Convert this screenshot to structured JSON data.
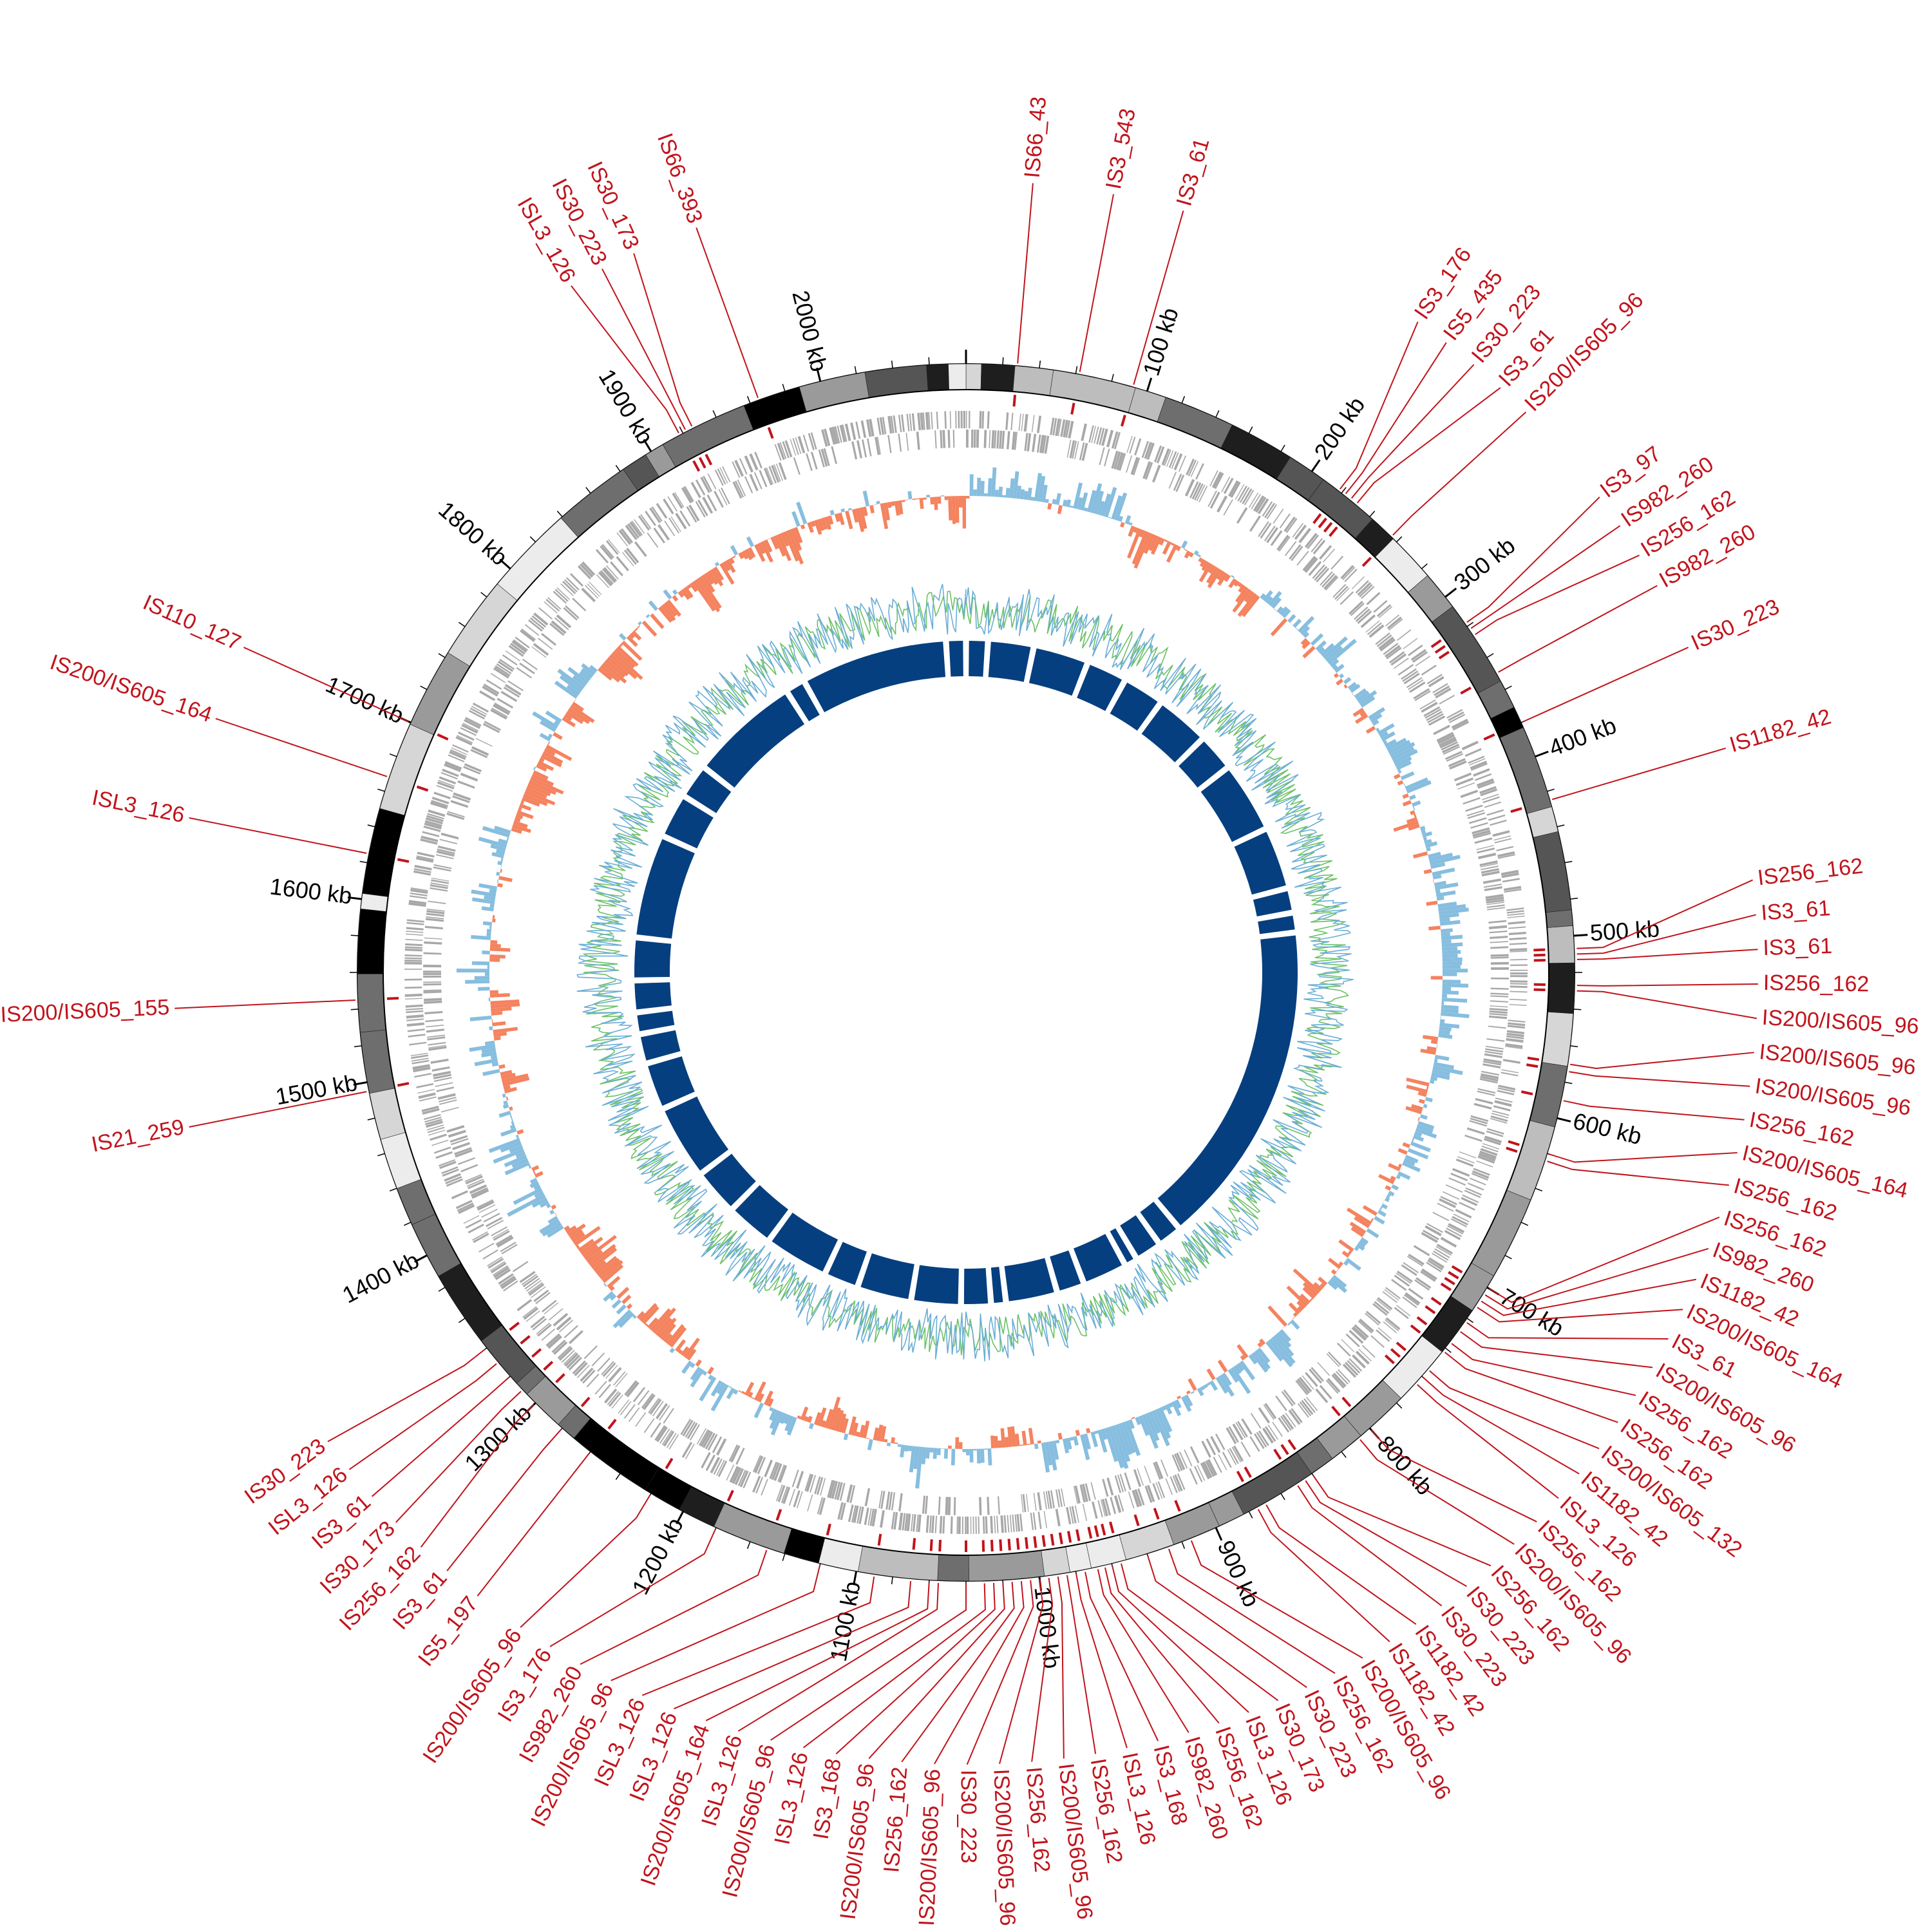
{
  "diagram": {
    "genome_length_kb": 2080,
    "colors": {
      "is_element": "#c0141c",
      "gc_skew_positive": "#87bedf",
      "gc_skew_negative": "#f4835f",
      "gc_content_a": "#6aaed6",
      "gc_content_b": "#6cc167",
      "homology_blocks": "#063f7f",
      "cds": "#a8a8a8",
      "text": "#000000"
    },
    "position_labels": [
      {
        "kb": 100,
        "text": "100 kb"
      },
      {
        "kb": 200,
        "text": "200 kb"
      },
      {
        "kb": 300,
        "text": "300 kb"
      },
      {
        "kb": 400,
        "text": "400 kb"
      },
      {
        "kb": 500,
        "text": "500 kb"
      },
      {
        "kb": 600,
        "text": "600 kb"
      },
      {
        "kb": 700,
        "text": "700 kb"
      },
      {
        "kb": 800,
        "text": "800 kb"
      },
      {
        "kb": 900,
        "text": "900 kb"
      },
      {
        "kb": 1000,
        "text": "1000 kb"
      },
      {
        "kb": 1100,
        "text": "1100 kb"
      },
      {
        "kb": 1200,
        "text": "1200 kb"
      },
      {
        "kb": 1300,
        "text": "1300 kb"
      },
      {
        "kb": 1400,
        "text": "1400 kb"
      },
      {
        "kb": 1500,
        "text": "1500 kb"
      },
      {
        "kb": 1600,
        "text": "1600 kb"
      },
      {
        "kb": 1700,
        "text": "1700 kb"
      },
      {
        "kb": 1800,
        "text": "1800 kb"
      },
      {
        "kb": 1900,
        "text": "1900 kb"
      },
      {
        "kb": 2000,
        "text": "2000 kb"
      }
    ],
    "is_elements": [
      {
        "kb": 28,
        "label": "IS66_43"
      },
      {
        "kb": 62,
        "label": "IS3_543"
      },
      {
        "kb": 92,
        "label": "IS3_61"
      },
      {
        "kb": 218,
        "label": "IS3_176"
      },
      {
        "kb": 222,
        "label": "IS5_435"
      },
      {
        "kb": 226,
        "label": "IS30_223"
      },
      {
        "kb": 230,
        "label": "IS3_61"
      },
      {
        "kb": 256,
        "label": "IS200/IS605_96"
      },
      {
        "kb": 318,
        "label": "IS3_97"
      },
      {
        "kb": 322,
        "label": "IS982_260"
      },
      {
        "kb": 326,
        "label": "IS256_162"
      },
      {
        "kb": 350,
        "label": "IS982_260"
      },
      {
        "kb": 380,
        "label": "IS30_223"
      },
      {
        "kb": 425,
        "label": "IS1182_42"
      },
      {
        "kb": 507,
        "label": "IS256_162"
      },
      {
        "kb": 510,
        "label": "IS3_61"
      },
      {
        "kb": 513,
        "label": "IS3_61"
      },
      {
        "kb": 527,
        "label": "IS256_162"
      },
      {
        "kb": 530,
        "label": "IS200/IS605_96"
      },
      {
        "kb": 570,
        "label": "IS200/IS605_96"
      },
      {
        "kb": 574,
        "label": "IS200/IS605_96"
      },
      {
        "kb": 590,
        "label": "IS256_162"
      },
      {
        "kb": 620,
        "label": "IS200/IS605_164"
      },
      {
        "kb": 624,
        "label": "IS256_162"
      },
      {
        "kb": 700,
        "label": "IS256_162"
      },
      {
        "kb": 704,
        "label": "IS982_260"
      },
      {
        "kb": 708,
        "label": "IS1182_42"
      },
      {
        "kb": 712,
        "label": "IS200/IS605_164"
      },
      {
        "kb": 722,
        "label": "IS3_61"
      },
      {
        "kb": 728,
        "label": "IS200/IS605_96"
      },
      {
        "kb": 736,
        "label": "IS256_162"
      },
      {
        "kb": 742,
        "label": "IS256_162"
      },
      {
        "kb": 755,
        "label": "IS200/IS605_132"
      },
      {
        "kb": 760,
        "label": "IS1182_42"
      },
      {
        "kb": 765,
        "label": "ISL3_126"
      },
      {
        "kb": 800,
        "label": "IS256_162"
      },
      {
        "kb": 808,
        "label": "IS200/IS605_96"
      },
      {
        "kb": 840,
        "label": "IS256_162"
      },
      {
        "kb": 845,
        "label": "IS30_223"
      },
      {
        "kb": 850,
        "label": "IS30_223"
      },
      {
        "kb": 870,
        "label": "IS1182_42"
      },
      {
        "kb": 875,
        "label": "IS1182_42"
      },
      {
        "kb": 915,
        "label": "IS200/IS605_96"
      },
      {
        "kb": 928,
        "label": "IS256_162"
      },
      {
        "kb": 940,
        "label": "IS30_223"
      },
      {
        "kb": 955,
        "label": "IS30_173"
      },
      {
        "kb": 960,
        "label": "ISL3_126"
      },
      {
        "kb": 964,
        "label": "IS256_162"
      },
      {
        "kb": 968,
        "label": "IS982_260"
      },
      {
        "kb": 975,
        "label": "IS3_168"
      },
      {
        "kb": 980,
        "label": "ISL3_126"
      },
      {
        "kb": 985,
        "label": "IS256_162"
      },
      {
        "kb": 990,
        "label": "IS200/IS605_96"
      },
      {
        "kb": 995,
        "label": "IS256_162"
      },
      {
        "kb": 1000,
        "label": "IS200/IS605_96"
      },
      {
        "kb": 1005,
        "label": "IS30_223"
      },
      {
        "kb": 1010,
        "label": "IS200/IS605_96"
      },
      {
        "kb": 1015,
        "label": "IS256_162"
      },
      {
        "kb": 1020,
        "label": "IS200/IS605_96"
      },
      {
        "kb": 1025,
        "label": "IS3_168"
      },
      {
        "kb": 1030,
        "label": "ISL3_126"
      },
      {
        "kb": 1040,
        "label": "IS200/IS605_96"
      },
      {
        "kb": 1055,
        "label": "ISL3_126"
      },
      {
        "kb": 1060,
        "label": "IS200/IS605_164"
      },
      {
        "kb": 1070,
        "label": "ISL3_126"
      },
      {
        "kb": 1090,
        "label": "ISL3_126"
      },
      {
        "kb": 1120,
        "label": "IS200/IS605_96"
      },
      {
        "kb": 1150,
        "label": "IS982_260"
      },
      {
        "kb": 1180,
        "label": "IS3_176"
      },
      {
        "kb": 1220,
        "label": "IS200/IS605_96"
      },
      {
        "kb": 1260,
        "label": "IS5_197"
      },
      {
        "kb": 1280,
        "label": "IS3_61"
      },
      {
        "kb": 1300,
        "label": "IS256_162"
      },
      {
        "kb": 1310,
        "label": "IS30_173"
      },
      {
        "kb": 1320,
        "label": "IS3_61"
      },
      {
        "kb": 1330,
        "label": "ISL3_126"
      },
      {
        "kb": 1340,
        "label": "IS30_223"
      },
      {
        "kb": 1495,
        "label": "IS21_259"
      },
      {
        "kb": 1545,
        "label": "IS200/IS605_155"
      },
      {
        "kb": 1625,
        "label": "ISL3_126"
      },
      {
        "kb": 1668,
        "label": "IS200/IS605_164"
      },
      {
        "kb": 1700,
        "label": "IS110_127"
      },
      {
        "kb": 1918,
        "label": "ISL3_126"
      },
      {
        "kb": 1922,
        "label": "IS30_223"
      },
      {
        "kb": 1926,
        "label": "IS30_173"
      },
      {
        "kb": 1965,
        "label": "IS66_393"
      }
    ]
  }
}
